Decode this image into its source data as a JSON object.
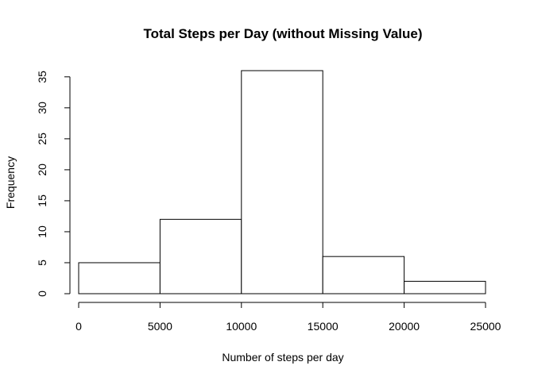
{
  "chart_data": {
    "type": "bar",
    "subtype": "histogram",
    "title": "Total Steps per Day (without Missing Value)",
    "xlabel": "Number of steps per day",
    "ylabel": "Frequency",
    "bins": [
      {
        "from": 0,
        "to": 5000,
        "count": 5
      },
      {
        "from": 5000,
        "to": 10000,
        "count": 12
      },
      {
        "from": 10000,
        "to": 15000,
        "count": 36
      },
      {
        "from": 15000,
        "to": 20000,
        "count": 6
      },
      {
        "from": 20000,
        "to": 25000,
        "count": 2
      }
    ],
    "xlim": [
      0,
      25000
    ],
    "ylim": [
      0,
      35
    ],
    "xticks": [
      0,
      5000,
      10000,
      15000,
      20000,
      25000
    ],
    "yticks": [
      0,
      5,
      10,
      15,
      20,
      25,
      30,
      35
    ],
    "bar_fill": "#ffffff",
    "bar_stroke": "#000000",
    "grid": false
  }
}
